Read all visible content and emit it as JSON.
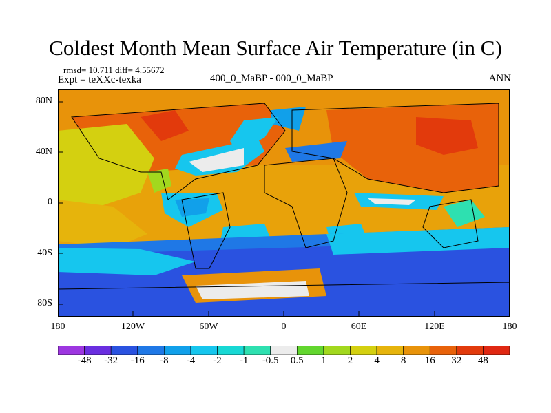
{
  "title": "Coldest Month Mean Surface Air Temperature (in C)",
  "stats": "rmsd= 10.711  diff= 4.55672",
  "experiment": "Expt = teXXc-texka",
  "difference_label": "400_0_MaBP - 000_0_MaBP",
  "season": "ANN",
  "chart_data": {
    "type": "heatmap",
    "title": "Coldest Month Mean Surface Air Temperature (in C)",
    "projection": "cylindrical equidistant",
    "lon_range": [
      -180,
      180
    ],
    "lat_range": [
      -90,
      90
    ],
    "x_ticks": [
      "180",
      "120W",
      "60W",
      "0",
      "60E",
      "120E",
      "180"
    ],
    "y_ticks": [
      "80N",
      "40N",
      "0",
      "40S",
      "80S"
    ],
    "colorbar_labels": [
      "-48",
      "-32",
      "-16",
      "-8",
      "-4",
      "-2",
      "-1",
      "-0.5",
      "0.5",
      "1",
      "2",
      "4",
      "8",
      "16",
      "32",
      "48"
    ],
    "colors": [
      "#9d36e0",
      "#6a2ee0",
      "#2a52e0",
      "#1f78e6",
      "#11a0ea",
      "#16c6ee",
      "#18d8d4",
      "#2ee0b0",
      "#ececec",
      "#62d62e",
      "#a2d81e",
      "#d4d010",
      "#e6b40c",
      "#e8930a",
      "#e8620a",
      "#e23a0c",
      "#e02812"
    ]
  }
}
